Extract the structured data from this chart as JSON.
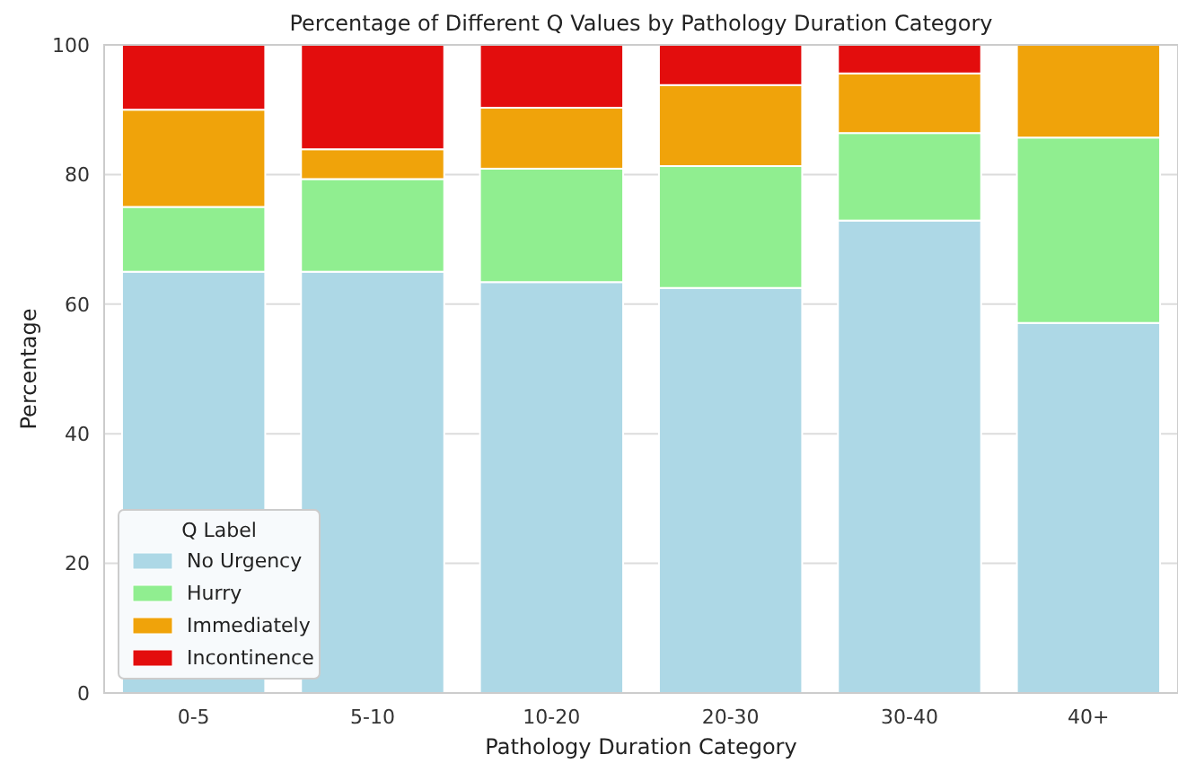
{
  "chart_data": {
    "type": "bar",
    "title": "Percentage of Different Q Values by Pathology Duration Category",
    "xlabel": "Pathology Duration Category",
    "ylabel": "Percentage",
    "legend_title": "Q Label",
    "categories": [
      "0-5",
      "5-10",
      "10-20",
      "20-30",
      "30-40",
      "40+"
    ],
    "stacked": true,
    "ylim": [
      0,
      100
    ],
    "yticks": [
      0,
      20,
      40,
      60,
      80,
      100
    ],
    "grid": "y",
    "legend": "bottom left",
    "series": [
      {
        "name": "No Urgency",
        "color": "#add8e6",
        "values": [
          65,
          65,
          63.4,
          62.5,
          72.9,
          57.1
        ]
      },
      {
        "name": "Hurry",
        "color": "#90ee90",
        "values": [
          10,
          14.3,
          17.5,
          18.8,
          13.5,
          28.6
        ]
      },
      {
        "name": "Immediately",
        "color": "#f0a30a",
        "values": [
          15,
          4.6,
          9.4,
          12.5,
          9.2,
          14.3
        ]
      },
      {
        "name": "Incontinence",
        "color": "#e30d0d",
        "values": [
          10,
          16.1,
          9.7,
          6.2,
          4.4,
          0
        ]
      }
    ]
  }
}
